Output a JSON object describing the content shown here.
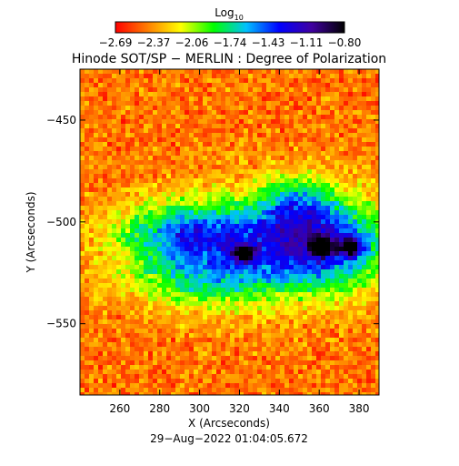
{
  "chart_data": {
    "type": "heatmap",
    "title": "Hinode SOT/SP − MERLIN : Degree of Polarization",
    "footer": "29−Aug−2022 01:04:05.672",
    "xlabel": "X (Arcseconds)",
    "ylabel": "Y (Arcseconds)",
    "xlim": [
      240,
      390
    ],
    "ylim": [
      -585,
      -425
    ],
    "x_ticks": [
      260,
      280,
      300,
      320,
      340,
      360,
      380
    ],
    "x_tick_labels": [
      "260",
      "280",
      "300",
      "320",
      "340",
      "360",
      "380"
    ],
    "y_ticks": [
      -450,
      -500,
      -550
    ],
    "y_tick_labels": [
      "−450",
      "−500",
      "−550"
    ],
    "colorbar": {
      "title": "Log",
      "title_subscript": "10",
      "min": -2.69,
      "max": -0.8,
      "tick_labels": [
        "−2.69",
        "−2.37",
        "−2.06",
        "−1.74",
        "−1.43",
        "−1.11",
        "−0.80"
      ],
      "colors": [
        "#ff0000",
        "#ff8000",
        "#ffff00",
        "#00ff00",
        "#00c0ff",
        "#0000ff",
        "#4000a0",
        "#000000"
      ]
    },
    "high_polarization_regions": [
      {
        "x": 322,
        "y": -515
      },
      {
        "x": 361,
        "y": -512
      },
      {
        "x": 375,
        "y": -512
      }
    ]
  }
}
